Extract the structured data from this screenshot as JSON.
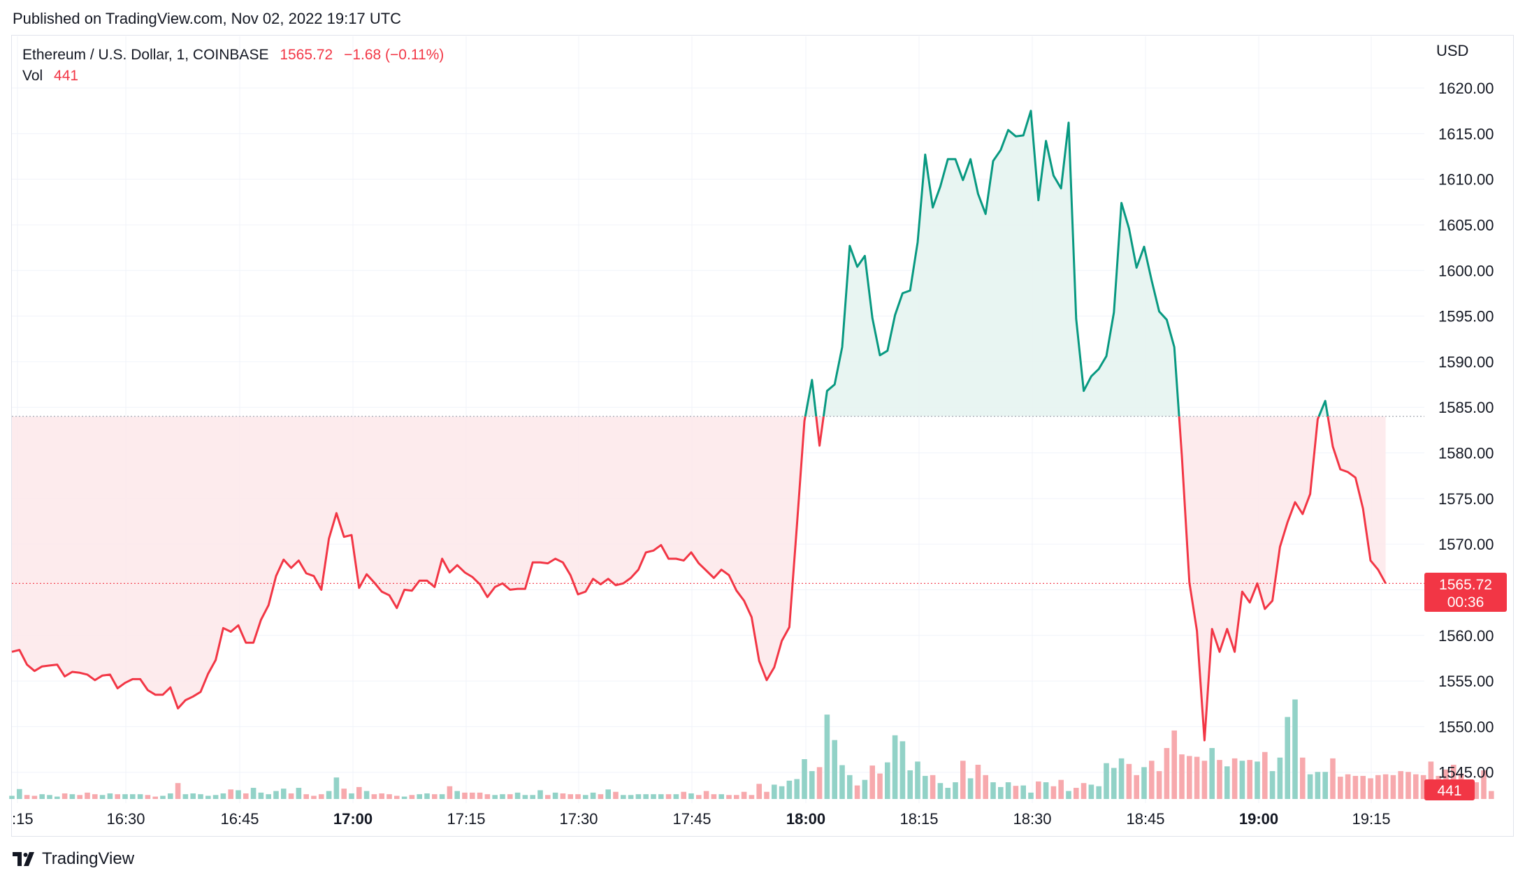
{
  "header": {
    "published_text": "Published on TradingView.com, Nov 02, 2022 19:17 UTC"
  },
  "legend": {
    "symbol": "Ethereum / U.S. Dollar, 1, COINBASE",
    "last_price": "1565.72",
    "change": "−1.68 (−0.11%)",
    "vol_label": "Vol",
    "vol_value": "441"
  },
  "price_axis": {
    "currency": "USD",
    "current_price_label": "1565.72",
    "countdown_label": "00:36",
    "volume_label": "441"
  },
  "footer": {
    "brand": "TradingView"
  },
  "colors": {
    "up": "#089981",
    "down": "#f23645",
    "up_fill": "#e6f4f1",
    "down_fill": "#fde9eb",
    "up_volume": "#92d2c7",
    "down_volume": "#f7a9ad",
    "grid": "#f0f3fa"
  },
  "chart_data": {
    "type": "area",
    "baseline": 1584,
    "ylim": [
      1542,
      1624
    ],
    "y_ticks": [
      1545,
      1550,
      1555,
      1560,
      1565,
      1570,
      1575,
      1580,
      1585,
      1590,
      1595,
      1600,
      1605,
      1610,
      1615,
      1620
    ],
    "x_tick_labels": [
      ":15",
      "16:30",
      "16:45",
      "17:00",
      "17:15",
      "17:30",
      "17:45",
      "18:00",
      "18:15",
      "18:30",
      "18:45",
      "19:00",
      "19:15"
    ],
    "x_tick_bold": [
      false,
      false,
      false,
      true,
      false,
      false,
      false,
      true,
      false,
      false,
      false,
      true,
      false
    ],
    "start_time": "16:14",
    "interval_minutes": 1,
    "prices": [
      1558.2,
      1558.4,
      1556.8,
      1556.1,
      1556.6,
      1556.7,
      1556.8,
      1555.5,
      1556.0,
      1555.9,
      1555.7,
      1555.1,
      1555.6,
      1555.7,
      1554.2,
      1554.8,
      1555.2,
      1555.2,
      1554.0,
      1553.5,
      1553.5,
      1554.3,
      1552.0,
      1552.9,
      1553.3,
      1553.8,
      1555.8,
      1557.3,
      1560.8,
      1560.4,
      1561.1,
      1559.2,
      1559.2,
      1561.7,
      1563.3,
      1566.5,
      1568.3,
      1567.4,
      1568.2,
      1566.8,
      1566.5,
      1565.0,
      1570.6,
      1573.4,
      1570.8,
      1571.0,
      1565.2,
      1566.7,
      1565.8,
      1564.8,
      1564.4,
      1563.0,
      1565.0,
      1564.9,
      1566.0,
      1566.0,
      1565.3,
      1568.4,
      1566.9,
      1567.7,
      1566.9,
      1566.4,
      1565.6,
      1564.2,
      1565.3,
      1565.7,
      1565.0,
      1565.1,
      1565.1,
      1568.0,
      1568.0,
      1567.9,
      1568.4,
      1568.0,
      1566.6,
      1564.5,
      1564.8,
      1566.2,
      1565.6,
      1566.2,
      1565.5,
      1565.7,
      1566.3,
      1567.2,
      1569.1,
      1569.3,
      1569.9,
      1568.4,
      1568.4,
      1568.2,
      1569.1,
      1567.9,
      1567.1,
      1566.3,
      1567.2,
      1566.6,
      1564.9,
      1563.8,
      1562.0,
      1557.2,
      1555.1,
      1556.5,
      1559.4,
      1560.9,
      1572.0,
      1583.5,
      1588.0,
      1580.8,
      1586.8,
      1587.5,
      1591.6,
      1602.7,
      1600.4,
      1601.6,
      1594.8,
      1590.7,
      1591.2,
      1595.1,
      1597.5,
      1597.8,
      1603.1,
      1612.7,
      1606.9,
      1609.2,
      1612.2,
      1612.2,
      1609.9,
      1612.2,
      1608.4,
      1606.2,
      1612.0,
      1613.2,
      1615.4,
      1614.7,
      1614.8,
      1617.5,
      1607.7,
      1614.2,
      1610.4,
      1609.0,
      1616.2,
      1594.7,
      1586.8,
      1588.4,
      1589.2,
      1590.6,
      1595.4,
      1607.4,
      1604.6,
      1600.3,
      1602.6,
      1598.9,
      1595.5,
      1594.6,
      1591.6,
      1579.7,
      1565.8,
      1560.5,
      1548.5,
      1560.7,
      1558.2,
      1560.7,
      1558.2,
      1564.8,
      1563.6,
      1565.7,
      1562.9,
      1563.8,
      1569.7,
      1572.4,
      1574.6,
      1573.3,
      1575.5,
      1583.7,
      1585.7,
      1580.7,
      1578.2,
      1577.9,
      1577.3,
      1573.9,
      1568.2,
      1567.2,
      1565.7
    ],
    "volumes": [
      8,
      25,
      10,
      8,
      12,
      10,
      6,
      14,
      12,
      10,
      16,
      12,
      10,
      14,
      12,
      12,
      12,
      12,
      10,
      6,
      8,
      14,
      40,
      12,
      14,
      12,
      8,
      10,
      14,
      24,
      22,
      14,
      28,
      16,
      12,
      20,
      26,
      14,
      28,
      12,
      8,
      12,
      20,
      54,
      26,
      14,
      30,
      20,
      12,
      14,
      12,
      8,
      6,
      10,
      12,
      14,
      12,
      12,
      32,
      20,
      16,
      16,
      16,
      12,
      10,
      12,
      12,
      16,
      10,
      10,
      22,
      10,
      16,
      14,
      12,
      12,
      10,
      16,
      12,
      24,
      18,
      10,
      10,
      12,
      12,
      12,
      12,
      12,
      12,
      18,
      14,
      10,
      20,
      12,
      12,
      10,
      10,
      18,
      10,
      38,
      18,
      36,
      32,
      46,
      50,
      100,
      70,
      80,
      212,
      148,
      85,
      60,
      34,
      48,
      84,
      64,
      92,
      160,
      145,
      72,
      94,
      58,
      60,
      40,
      28,
      42,
      96,
      52,
      86,
      60,
      42,
      30,
      42,
      33,
      34,
      16,
      44,
      42,
      32,
      48,
      20,
      28,
      40,
      36,
      32,
      90,
      78,
      102,
      88,
      60,
      80,
      96,
      70,
      128,
      172,
      112,
      108,
      106,
      96,
      128,
      98,
      82,
      102,
      96,
      98,
      94,
      118,
      70,
      104,
      206,
      250,
      104,
      62,
      68,
      68,
      102,
      56,
      62,
      58,
      58,
      52,
      60,
      62,
      60,
      70,
      68,
      62,
      60,
      94,
      58,
      74,
      86,
      64,
      48,
      42,
      72,
      20
    ]
  }
}
